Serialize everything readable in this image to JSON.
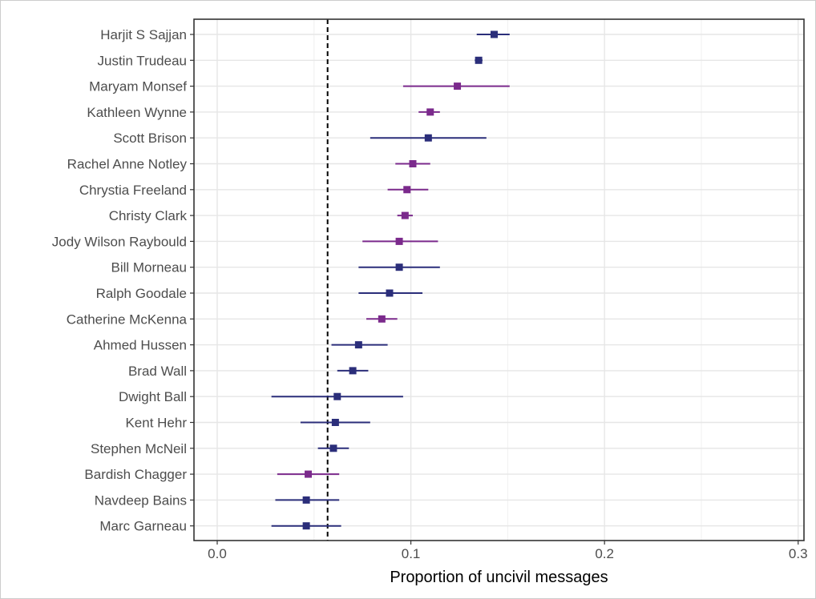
{
  "chart_data": {
    "type": "scatter",
    "subtype": "point-range",
    "xlabel": "Proportion of uncivil messages",
    "ylabel": "",
    "xlim": [
      -0.012,
      0.303
    ],
    "x_ticks": [
      0.0,
      0.1,
      0.2,
      0.3
    ],
    "x_tick_labels": [
      "0.0",
      "0.1",
      "0.2",
      "0.3"
    ],
    "reference_line": {
      "x": 0.057,
      "style": "dashed",
      "color": "#000000"
    },
    "grid": true,
    "legend": "none",
    "colors": {
      "blue": "#2b2e7a",
      "purple": "#7b2a8c"
    },
    "points": [
      {
        "name": "Harjit S Sajjan",
        "estimate": 0.143,
        "low": 0.134,
        "high": 0.151,
        "color": "blue"
      },
      {
        "name": "Justin Trudeau",
        "estimate": 0.135,
        "low": 0.133,
        "high": 0.137,
        "color": "blue"
      },
      {
        "name": "Maryam Monsef",
        "estimate": 0.124,
        "low": 0.096,
        "high": 0.151,
        "color": "purple"
      },
      {
        "name": "Kathleen Wynne",
        "estimate": 0.11,
        "low": 0.104,
        "high": 0.115,
        "color": "purple"
      },
      {
        "name": "Scott Brison",
        "estimate": 0.109,
        "low": 0.079,
        "high": 0.139,
        "color": "blue"
      },
      {
        "name": "Rachel Anne Notley",
        "estimate": 0.101,
        "low": 0.092,
        "high": 0.11,
        "color": "purple"
      },
      {
        "name": "Chrystia Freeland",
        "estimate": 0.098,
        "low": 0.088,
        "high": 0.109,
        "color": "purple"
      },
      {
        "name": "Christy Clark",
        "estimate": 0.097,
        "low": 0.093,
        "high": 0.101,
        "color": "purple"
      },
      {
        "name": "Jody Wilson Raybould",
        "estimate": 0.094,
        "low": 0.075,
        "high": 0.114,
        "color": "purple"
      },
      {
        "name": "Bill Morneau",
        "estimate": 0.094,
        "low": 0.073,
        "high": 0.115,
        "color": "blue"
      },
      {
        "name": "Ralph Goodale",
        "estimate": 0.089,
        "low": 0.073,
        "high": 0.106,
        "color": "blue"
      },
      {
        "name": "Catherine McKenna",
        "estimate": 0.085,
        "low": 0.077,
        "high": 0.093,
        "color": "purple"
      },
      {
        "name": "Ahmed Hussen",
        "estimate": 0.073,
        "low": 0.059,
        "high": 0.088,
        "color": "blue"
      },
      {
        "name": "Brad Wall",
        "estimate": 0.07,
        "low": 0.062,
        "high": 0.078,
        "color": "blue"
      },
      {
        "name": "Dwight Ball",
        "estimate": 0.062,
        "low": 0.028,
        "high": 0.096,
        "color": "blue"
      },
      {
        "name": "Kent Hehr",
        "estimate": 0.061,
        "low": 0.043,
        "high": 0.079,
        "color": "blue"
      },
      {
        "name": "Stephen McNeil",
        "estimate": 0.06,
        "low": 0.052,
        "high": 0.068,
        "color": "blue"
      },
      {
        "name": "Bardish Chagger",
        "estimate": 0.047,
        "low": 0.031,
        "high": 0.063,
        "color": "purple"
      },
      {
        "name": "Navdeep Bains",
        "estimate": 0.046,
        "low": 0.03,
        "high": 0.063,
        "color": "blue"
      },
      {
        "name": "Marc Garneau",
        "estimate": 0.046,
        "low": 0.028,
        "high": 0.064,
        "color": "blue"
      }
    ]
  }
}
